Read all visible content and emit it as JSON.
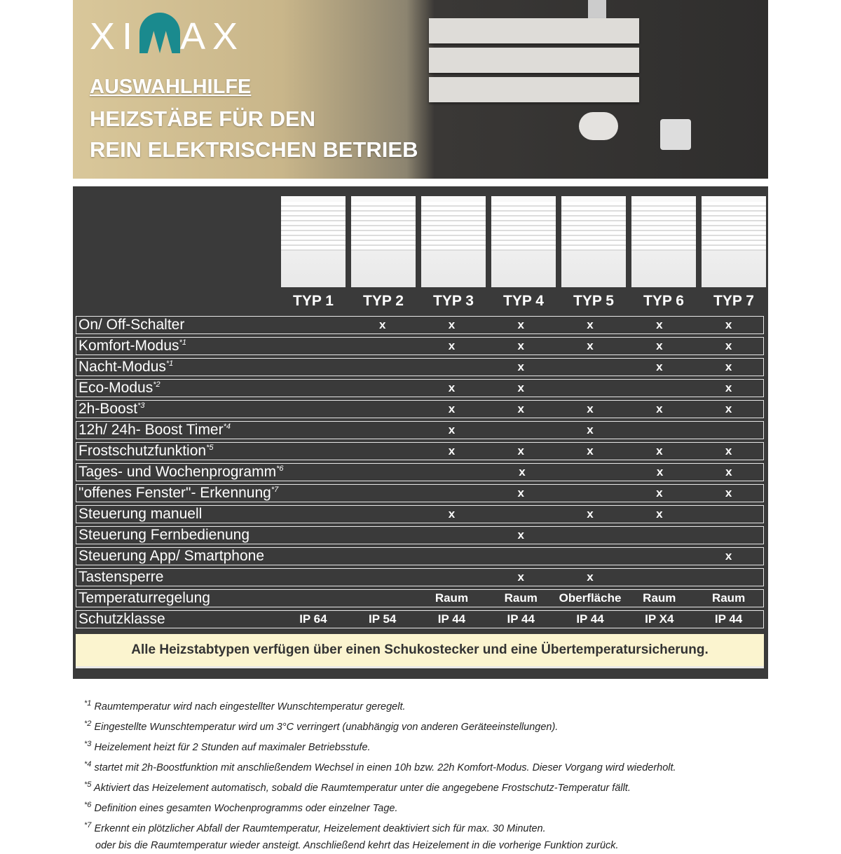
{
  "brand": {
    "logo": "XIMAX",
    "accent": "#1a8a8e"
  },
  "header": {
    "kicker": "AUSWAHLHILFE",
    "title_line1": "HEIZSTÄBE FÜR DEN",
    "title_line2": "REIN ELEKTRISCHEN BETRIEB"
  },
  "types": [
    "TYP 1",
    "TYP 2",
    "TYP 3",
    "TYP 4",
    "TYP 5",
    "TYP 6",
    "TYP 7"
  ],
  "rows": [
    {
      "label": "On/ Off-Schalter",
      "note": "",
      "cells": [
        "",
        "x",
        "x",
        "x",
        "x",
        "x",
        "x"
      ]
    },
    {
      "label": "Komfort-Modus",
      "note": "*1",
      "cells": [
        "",
        "",
        "x",
        "x",
        "x",
        "x",
        "x"
      ]
    },
    {
      "label": "Nacht-Modus",
      "note": "*1",
      "cells": [
        "",
        "",
        "",
        "x",
        "",
        "x",
        "x"
      ]
    },
    {
      "label": "Eco-Modus",
      "note": "*2",
      "cells": [
        "",
        "",
        "x",
        "x",
        "",
        "",
        "x"
      ]
    },
    {
      "label": "2h-Boost",
      "note": "*3",
      "cells": [
        "",
        "",
        "x",
        "x",
        "x",
        "x",
        "x"
      ]
    },
    {
      "label": "12h/ 24h- Boost Timer",
      "note": "*4",
      "cells": [
        "",
        "",
        "x",
        "",
        "x",
        "",
        ""
      ]
    },
    {
      "label": "Frostschutzfunktion",
      "note": "*5",
      "cells": [
        "",
        "",
        "x",
        "x",
        "x",
        "x",
        "x"
      ]
    },
    {
      "label": "Tages- und Wochenprogramm",
      "note": "*6",
      "cells": [
        "",
        "",
        "",
        "x",
        "",
        "x",
        "x"
      ]
    },
    {
      "label": "\"offenes Fenster\"- Erkennung",
      "note": "*7",
      "cells": [
        "",
        "",
        "",
        "x",
        "",
        "x",
        "x"
      ]
    },
    {
      "label": "Steuerung manuell",
      "note": "",
      "cells": [
        "",
        "",
        "x",
        "",
        "x",
        "x",
        ""
      ]
    },
    {
      "label": "Steuerung Fernbedienung",
      "note": "",
      "cells": [
        "",
        "",
        "",
        "x",
        "",
        "",
        ""
      ]
    },
    {
      "label": "Steuerung App/ Smartphone",
      "note": "",
      "cells": [
        "",
        "",
        "",
        "",
        "",
        "",
        "x"
      ]
    },
    {
      "label": "Tastensperre",
      "note": "",
      "cells": [
        "",
        "",
        "",
        "x",
        "x",
        "",
        ""
      ]
    },
    {
      "label": "Temperaturregelung",
      "note": "",
      "cells": [
        "",
        "",
        "Raum",
        "Raum",
        "Oberfläche",
        "Raum",
        "Raum"
      ]
    },
    {
      "label": "Schutzklasse",
      "note": "",
      "cells": [
        "IP 64",
        "IP 54",
        "IP 44",
        "IP 44",
        "IP 44",
        "IP X4",
        "IP 44"
      ]
    }
  ],
  "banner": "Alle Heizstabtypen verfügen über einen Schukostecker und eine Übertemperatursicherung.",
  "footnotes": [
    {
      "mark": "*1",
      "text": "Raumtemperatur wird nach eingestellter Wunschtemperatur geregelt."
    },
    {
      "mark": "*2",
      "text": "Eingestellte Wunschtemperatur wird um 3°C verringert (unabhängig von anderen Geräteeinstellungen)."
    },
    {
      "mark": "*3",
      "text": "Heizelement heizt für 2 Stunden auf maximaler Betriebsstufe."
    },
    {
      "mark": "*4",
      "text": "startet mit 2h-Boostfunktion mit anschließendem Wechsel in einen 10h bzw. 22h Komfort-Modus. Dieser Vorgang wird wiederholt."
    },
    {
      "mark": "*5",
      "text": "Aktiviert das Heizelement automatisch, sobald die Raumtemperatur unter die angegebene Frostschutz-Temperatur fällt."
    },
    {
      "mark": "*6",
      "text": "Definition eines gesamten Wochenprogramms oder einzelner Tage."
    },
    {
      "mark": "*7",
      "text": "Erkennt ein plötzlicher Abfall der Raumtemperatur, Heizelement deaktiviert sich für max. 30 Minuten."
    }
  ],
  "footnote_continuation": "oder bis die Raumtemperatur wieder ansteigt. Anschließend kehrt das Heizelement in die vorherige Funktion zurück."
}
